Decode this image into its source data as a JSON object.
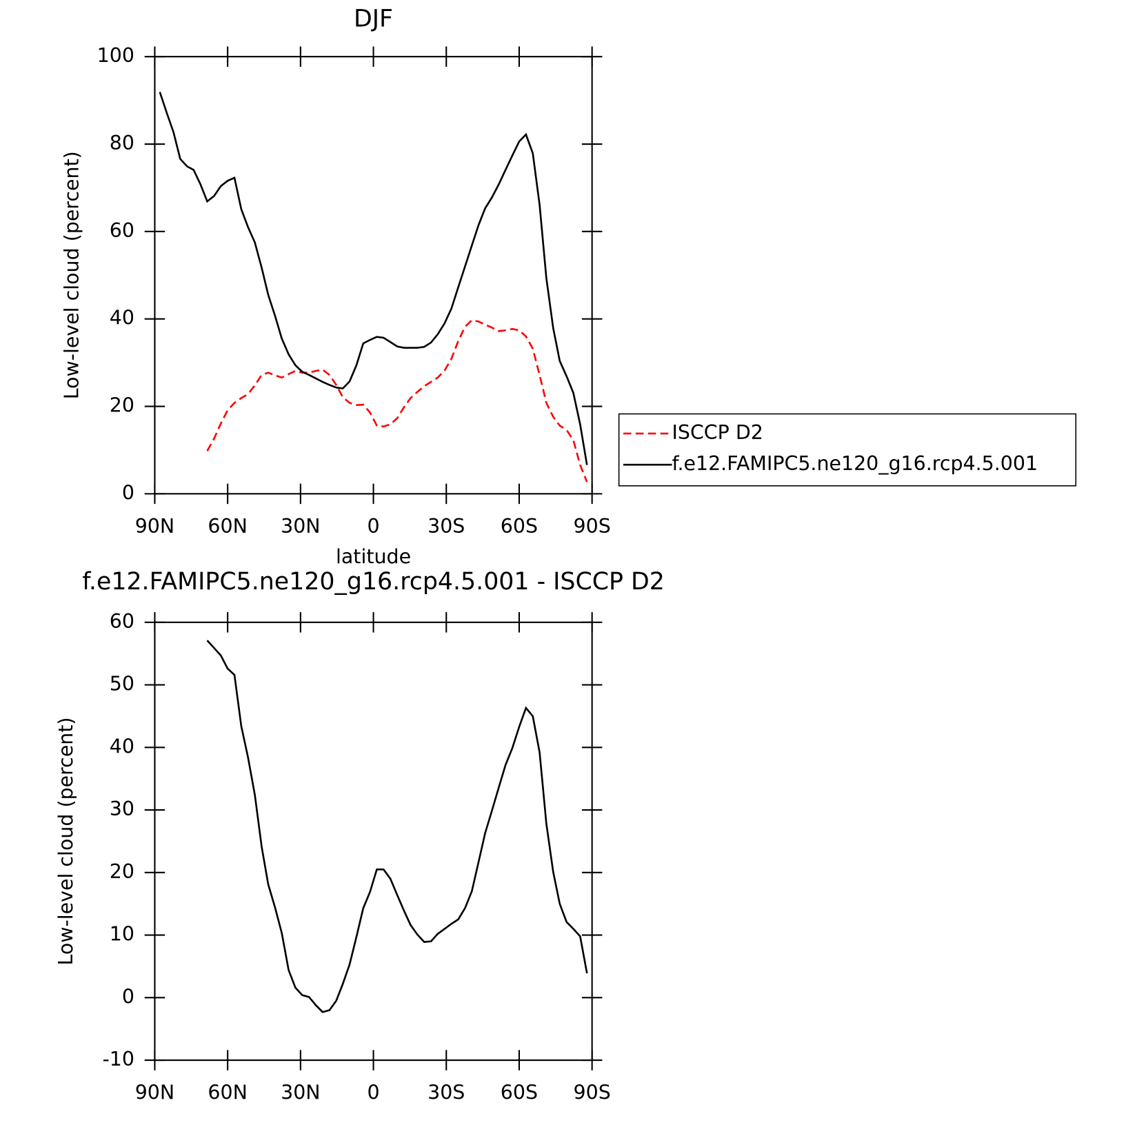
{
  "chart_data": [
    {
      "type": "line",
      "title": "DJF",
      "xlabel": "latitude",
      "ylabel": "Low-level cloud (percent)",
      "x": [
        87.9,
        85.1,
        82.3,
        79.5,
        76.7,
        74.0,
        71.2,
        68.4,
        65.6,
        62.8,
        60.0,
        57.2,
        54.4,
        51.6,
        48.8,
        46.0,
        43.3,
        40.5,
        37.7,
        34.9,
        32.1,
        29.3,
        26.5,
        23.7,
        20.9,
        18.1,
        15.3,
        12.6,
        9.8,
        7.0,
        4.2,
        1.4,
        -1.4,
        -4.2,
        -7.0,
        -9.8,
        -12.6,
        -15.3,
        -18.1,
        -20.9,
        -23.7,
        -26.5,
        -29.3,
        -32.1,
        -34.9,
        -37.7,
        -40.5,
        -43.3,
        -46.0,
        -48.8,
        -51.6,
        -54.4,
        -57.2,
        -60.0,
        -62.8,
        -65.6,
        -68.4,
        -71.2,
        -74.0,
        -76.7,
        -79.5,
        -82.3,
        -85.1,
        -87.9
      ],
      "series": [
        {
          "name": "ISCCP D2",
          "color": "#ff0000",
          "style": "dashed",
          "values": [
            null,
            null,
            null,
            null,
            null,
            null,
            null,
            9.8,
            12.6,
            16.1,
            19.1,
            20.8,
            21.9,
            22.8,
            24.8,
            27.2,
            27.7,
            27.1,
            26.6,
            27.4,
            28.1,
            27.7,
            27.7,
            28.1,
            28.4,
            27.2,
            24.9,
            22.1,
            20.8,
            20.3,
            20.4,
            18.6,
            15.6,
            15.4,
            15.9,
            17.3,
            19.8,
            21.9,
            23.3,
            24.6,
            25.6,
            26.6,
            28.2,
            30.9,
            34.9,
            38.2,
            39.7,
            39.4,
            38.7,
            38.0,
            37.2,
            37.4,
            37.7,
            37.4,
            36.0,
            33.2,
            27.2,
            20.8,
            17.6,
            15.6,
            14.6,
            12.3,
            6.6,
            2.7
          ]
        },
        {
          "name": "f.e12.FAMIPC5.ne120_g16.rcp4.5.001",
          "color": "#000000",
          "style": "solid",
          "values": [
            91.9,
            87.2,
            82.7,
            76.6,
            74.9,
            74.1,
            70.8,
            66.9,
            68.1,
            70.4,
            71.6,
            72.3,
            65.1,
            61.0,
            57.5,
            51.7,
            45.5,
            40.7,
            35.5,
            31.9,
            29.4,
            27.9,
            27.2,
            26.4,
            25.6,
            24.9,
            24.3,
            24.1,
            25.7,
            29.4,
            34.4,
            35.2,
            35.9,
            35.7,
            34.7,
            33.7,
            33.4,
            33.4,
            33.4,
            33.6,
            34.6,
            36.5,
            39.0,
            42.4,
            47.2,
            52.0,
            56.8,
            61.5,
            65.3,
            67.8,
            70.8,
            74.1,
            77.4,
            80.6,
            82.2,
            77.9,
            66.1,
            49.3,
            37.9,
            30.4,
            26.9,
            23.1,
            15.9,
            6.6
          ]
        }
      ],
      "xlim": [
        90,
        -90
      ],
      "xticks": [
        {
          "value": 90,
          "label": "90N"
        },
        {
          "value": 60,
          "label": "60N"
        },
        {
          "value": 30,
          "label": "30N"
        },
        0,
        {
          "value": -30,
          "label": "30S"
        },
        {
          "value": -60,
          "label": "60S"
        },
        {
          "value": -90,
          "label": "90S"
        }
      ],
      "ylim": [
        0,
        100
      ],
      "yticks": [
        0,
        20,
        40,
        60,
        80,
        100
      ],
      "legend": "right"
    },
    {
      "type": "line",
      "title": "f.e12.FAMIPC5.ne120_g16.rcp4.5.001 - ISCCP D2",
      "xlabel": "latitude",
      "ylabel": "Low-level cloud (percent)",
      "x": [
        87.9,
        85.1,
        82.3,
        79.5,
        76.7,
        74.0,
        71.2,
        68.4,
        65.6,
        62.8,
        60.0,
        57.2,
        54.4,
        51.6,
        48.8,
        46.0,
        43.3,
        40.5,
        37.7,
        34.9,
        32.1,
        29.3,
        26.5,
        23.7,
        20.9,
        18.1,
        15.3,
        12.6,
        9.8,
        7.0,
        4.2,
        1.4,
        -1.4,
        -4.2,
        -7.0,
        -9.8,
        -12.6,
        -15.3,
        -18.1,
        -20.9,
        -23.7,
        -26.5,
        -29.3,
        -32.1,
        -34.9,
        -37.7,
        -40.5,
        -43.3,
        -46.0,
        -48.8,
        -51.6,
        -54.4,
        -57.2,
        -60.0,
        -62.8,
        -65.6,
        -68.4,
        -71.2,
        -74.0,
        -76.7,
        -79.5,
        -82.3,
        -85.1,
        -87.9
      ],
      "series": [
        {
          "color": "#000000",
          "style": "solid",
          "values": [
            null,
            null,
            null,
            null,
            null,
            null,
            null,
            57.1,
            55.9,
            54.7,
            52.6,
            51.6,
            43.4,
            38.4,
            32.4,
            24.1,
            18.1,
            14.4,
            10.3,
            4.4,
            1.6,
            0.4,
            0.1,
            -1.2,
            -2.3,
            -2.0,
            -0.5,
            2.2,
            5.3,
            9.7,
            14.3,
            16.9,
            20.5,
            20.5,
            19.0,
            16.4,
            13.9,
            11.6,
            10.1,
            8.9,
            9.0,
            10.2,
            11.0,
            11.8,
            12.5,
            14.3,
            17.0,
            21.7,
            26.3,
            29.9,
            33.6,
            37.2,
            39.9,
            43.3,
            46.3,
            45.0,
            39.2,
            27.8,
            20.1,
            15.0,
            12.1,
            11.0,
            9.8,
            3.9
          ]
        }
      ],
      "xlim": [
        90,
        -90
      ],
      "xticks": [
        {
          "value": 90,
          "label": "90N"
        },
        {
          "value": 60,
          "label": "60N"
        },
        {
          "value": 30,
          "label": "30N"
        },
        0,
        {
          "value": -30,
          "label": "30S"
        },
        {
          "value": -60,
          "label": "60S"
        },
        {
          "value": -90,
          "label": "90S"
        }
      ],
      "ylim": [
        -10,
        60
      ],
      "yticks": [
        -10,
        0,
        10,
        20,
        30,
        40,
        50,
        60
      ]
    }
  ]
}
